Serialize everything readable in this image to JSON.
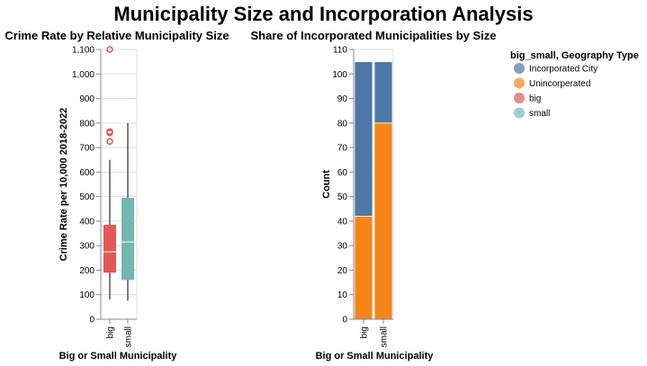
{
  "title": "Municipality Size and Incorporation Analysis",
  "chart_data": [
    {
      "type": "boxplot",
      "title": "Crime Rate by Relative Municipality Size",
      "xlabel": "Big or Small Municipality",
      "ylabel": "Crime Rate per 10,000 2018-2022",
      "categories": [
        "big",
        "small"
      ],
      "ylim": [
        0,
        1100
      ],
      "yticks": [
        0,
        100,
        200,
        300,
        400,
        500,
        600,
        700,
        800,
        900,
        1000,
        1100
      ],
      "ytick_labels": [
        "0",
        "100",
        "200",
        "300",
        "400",
        "500",
        "600",
        "700",
        "800",
        "900",
        "1,000",
        "1,100"
      ],
      "grid": true,
      "boxes": [
        {
          "category": "big",
          "whisker_low": 80,
          "q1": 190,
          "median": 275,
          "q3": 385,
          "whisker_high": 650,
          "outliers": [
            725,
            760,
            765,
            1100
          ],
          "color": "#e45756"
        },
        {
          "category": "small",
          "whisker_low": 75,
          "q1": 160,
          "median": 315,
          "q3": 495,
          "whisker_high": 800,
          "outliers": [],
          "color": "#72b7b2"
        }
      ]
    },
    {
      "type": "stacked-bar",
      "title": "Share of Incorporated Municipalities by Size",
      "xlabel": "Big or Small Municipality",
      "ylabel": "Count",
      "categories": [
        "big",
        "small"
      ],
      "ylim": [
        0,
        110
      ],
      "yticks": [
        0,
        10,
        20,
        30,
        40,
        50,
        60,
        70,
        80,
        90,
        100,
        110
      ],
      "ytick_labels": [
        "0",
        "10",
        "20",
        "30",
        "40",
        "50",
        "60",
        "70",
        "80",
        "90",
        "100",
        "110"
      ],
      "grid": true,
      "series": [
        {
          "name": "Unincorperated",
          "values": [
            42,
            80
          ],
          "color": "#f58518"
        },
        {
          "name": "Incorporated City",
          "values": [
            63,
            25
          ],
          "color": "#4c78a8"
        }
      ]
    }
  ],
  "legend": {
    "title": "big_small, Geography Type",
    "placement": "top-right",
    "items": [
      {
        "label": "Incorporated City",
        "color": "#4c78a8"
      },
      {
        "label": "Unincorperated",
        "color": "#f58518"
      },
      {
        "label": "big",
        "color": "#e45756"
      },
      {
        "label": "small",
        "color": "#72b7b2"
      }
    ]
  }
}
